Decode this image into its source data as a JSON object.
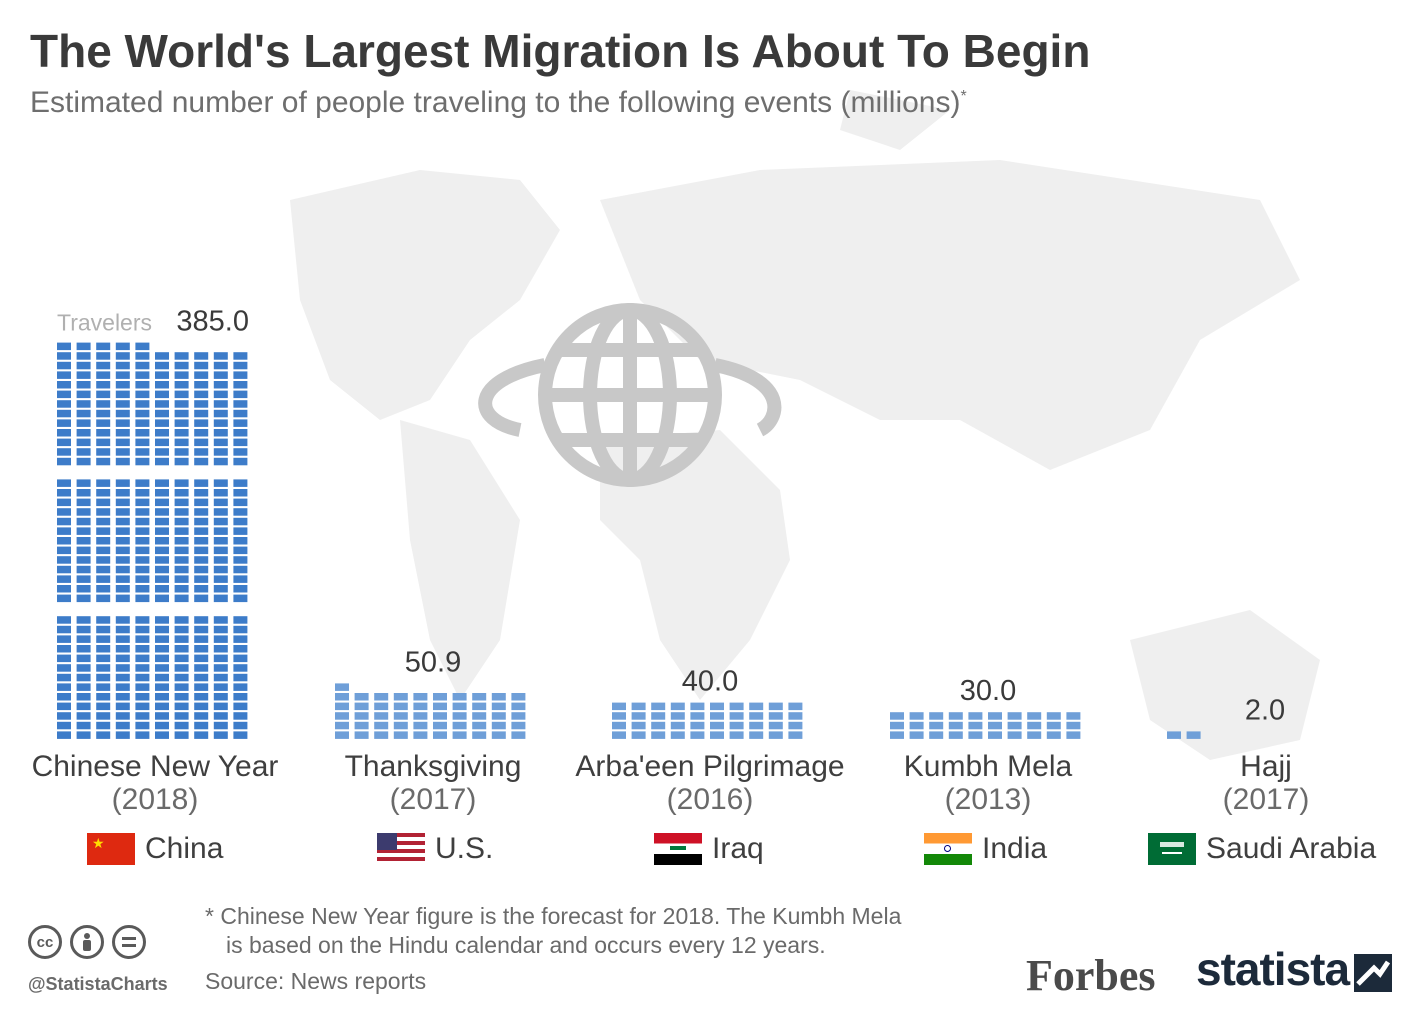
{
  "header": {
    "title": "The World's Largest Migration Is About To Begin",
    "subtitle": "Estimated number of people traveling to the following events (millions)",
    "subtitle_mark": "*"
  },
  "chart_data": {
    "type": "bar",
    "unit_label": "Travelers",
    "bar_color": "#3d7cc9",
    "bar_color_light": "#6f9fd8",
    "categories": [
      "Chinese New Year",
      "Thanksgiving",
      "Arba'een Pilgrimage",
      "Kumbh Mela",
      "Hajj"
    ],
    "years": [
      "(2018)",
      "(2017)",
      "(2016)",
      "(2013)",
      "(2017)"
    ],
    "values": [
      385.0,
      50.9,
      40.0,
      30.0,
      2.0
    ],
    "value_labels": [
      "385.0",
      "50.9",
      "40.0",
      "30.0",
      "2.0"
    ],
    "countries": [
      "China",
      "U.S.",
      "Iraq",
      "India",
      "Saudi Arabia"
    ]
  },
  "flags": {
    "china": "#de2910",
    "us": "#b22234",
    "iraq": "#ce1126",
    "india": "#ff9933",
    "saudi": "#006c35"
  },
  "footer": {
    "footnote_line1": "* Chinese New Year figure is the forecast for 2018. The Kumbh Mela",
    "footnote_line2": "is based on the Hindu calendar and occurs every 12 years.",
    "source": "Source: News reports",
    "handle": "@StatistaCharts",
    "brand_forbes": "Forbes",
    "brand_statista": "statista",
    "cc_icons": [
      "cc-icon",
      "by-icon",
      "nd-icon"
    ]
  }
}
